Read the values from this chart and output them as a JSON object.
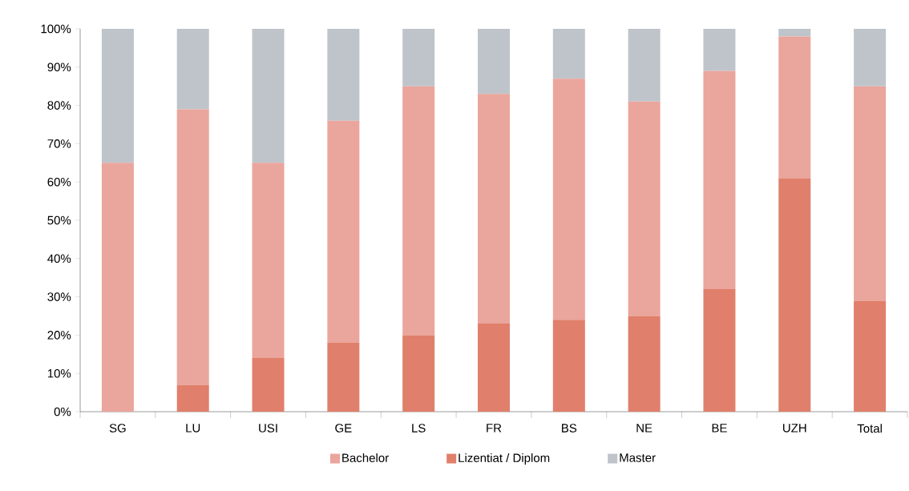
{
  "chart_data": {
    "type": "bar",
    "stacked": true,
    "categories": [
      "SG",
      "LU",
      "USI",
      "GE",
      "LS",
      "FR",
      "BS",
      "NE",
      "BE",
      "UZH",
      "Total"
    ],
    "series": [
      {
        "name": "Lizentiat / Diplom",
        "color": "#e07f6b",
        "values": [
          0,
          7,
          14,
          18,
          20,
          23,
          24,
          25,
          32,
          61,
          29
        ]
      },
      {
        "name": "Bachelor",
        "color": "#eaa59c",
        "values": [
          65,
          72,
          51,
          58,
          65,
          60,
          63,
          56,
          57,
          37,
          56
        ]
      },
      {
        "name": "Master",
        "color": "#bfc4ca",
        "values": [
          35,
          21,
          35,
          24,
          15,
          17,
          13,
          19,
          11,
          2,
          15
        ]
      }
    ],
    "ylim": [
      0,
      100
    ],
    "yticks": [
      {
        "value": 0,
        "label": "0%"
      },
      {
        "value": 10,
        "label": "10%"
      },
      {
        "value": 20,
        "label": "20%"
      },
      {
        "value": 30,
        "label": "30%"
      },
      {
        "value": 40,
        "label": "40%"
      },
      {
        "value": 50,
        "label": "50%"
      },
      {
        "value": 60,
        "label": "60%"
      },
      {
        "value": 70,
        "label": "70%"
      },
      {
        "value": 80,
        "label": "80%"
      },
      {
        "value": 90,
        "label": "90%"
      },
      {
        "value": 100,
        "label": "100%"
      }
    ],
    "grid": false,
    "legend": "bottom"
  }
}
